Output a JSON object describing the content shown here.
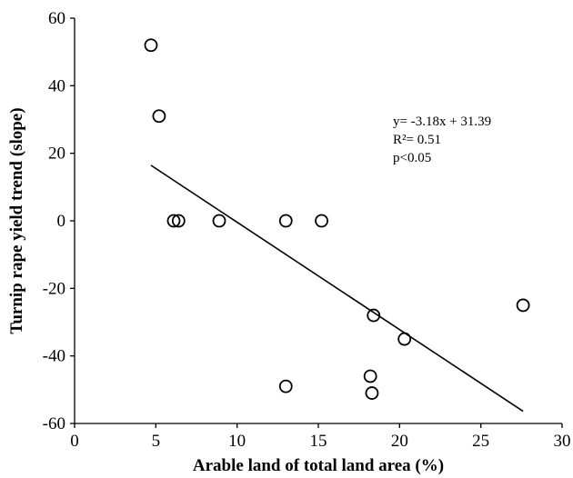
{
  "chart_data": {
    "type": "scatter",
    "title": "",
    "xlabel": "Arable land of total land area (%)",
    "ylabel": "Turnip rape yield trend (slope)",
    "xlim": [
      0,
      30
    ],
    "ylim": [
      -60,
      60
    ],
    "xticks": [
      0,
      5,
      10,
      15,
      20,
      25,
      30
    ],
    "yticks": [
      60,
      40,
      20,
      0,
      -20,
      -40,
      -60
    ],
    "grid": false,
    "series": [
      {
        "points": [
          {
            "x": 4.7,
            "y": 52
          },
          {
            "x": 5.2,
            "y": 31
          },
          {
            "x": 6.1,
            "y": 0
          },
          {
            "x": 6.4,
            "y": 0
          },
          {
            "x": 8.9,
            "y": 0
          },
          {
            "x": 13.0,
            "y": 0
          },
          {
            "x": 15.2,
            "y": 0
          },
          {
            "x": 13.0,
            "y": -49
          },
          {
            "x": 18.2,
            "y": -46
          },
          {
            "x": 18.3,
            "y": -51
          },
          {
            "x": 18.4,
            "y": -28
          },
          {
            "x": 20.3,
            "y": -35
          },
          {
            "x": 27.6,
            "y": -25
          }
        ]
      }
    ],
    "trendline": {
      "x_start": 4.7,
      "x_end": 27.6,
      "slope": -3.18,
      "intercept": 31.39
    },
    "annotations": [
      "y= -3.18x + 31.39",
      "R²= 0.51",
      "p<0.05"
    ]
  }
}
